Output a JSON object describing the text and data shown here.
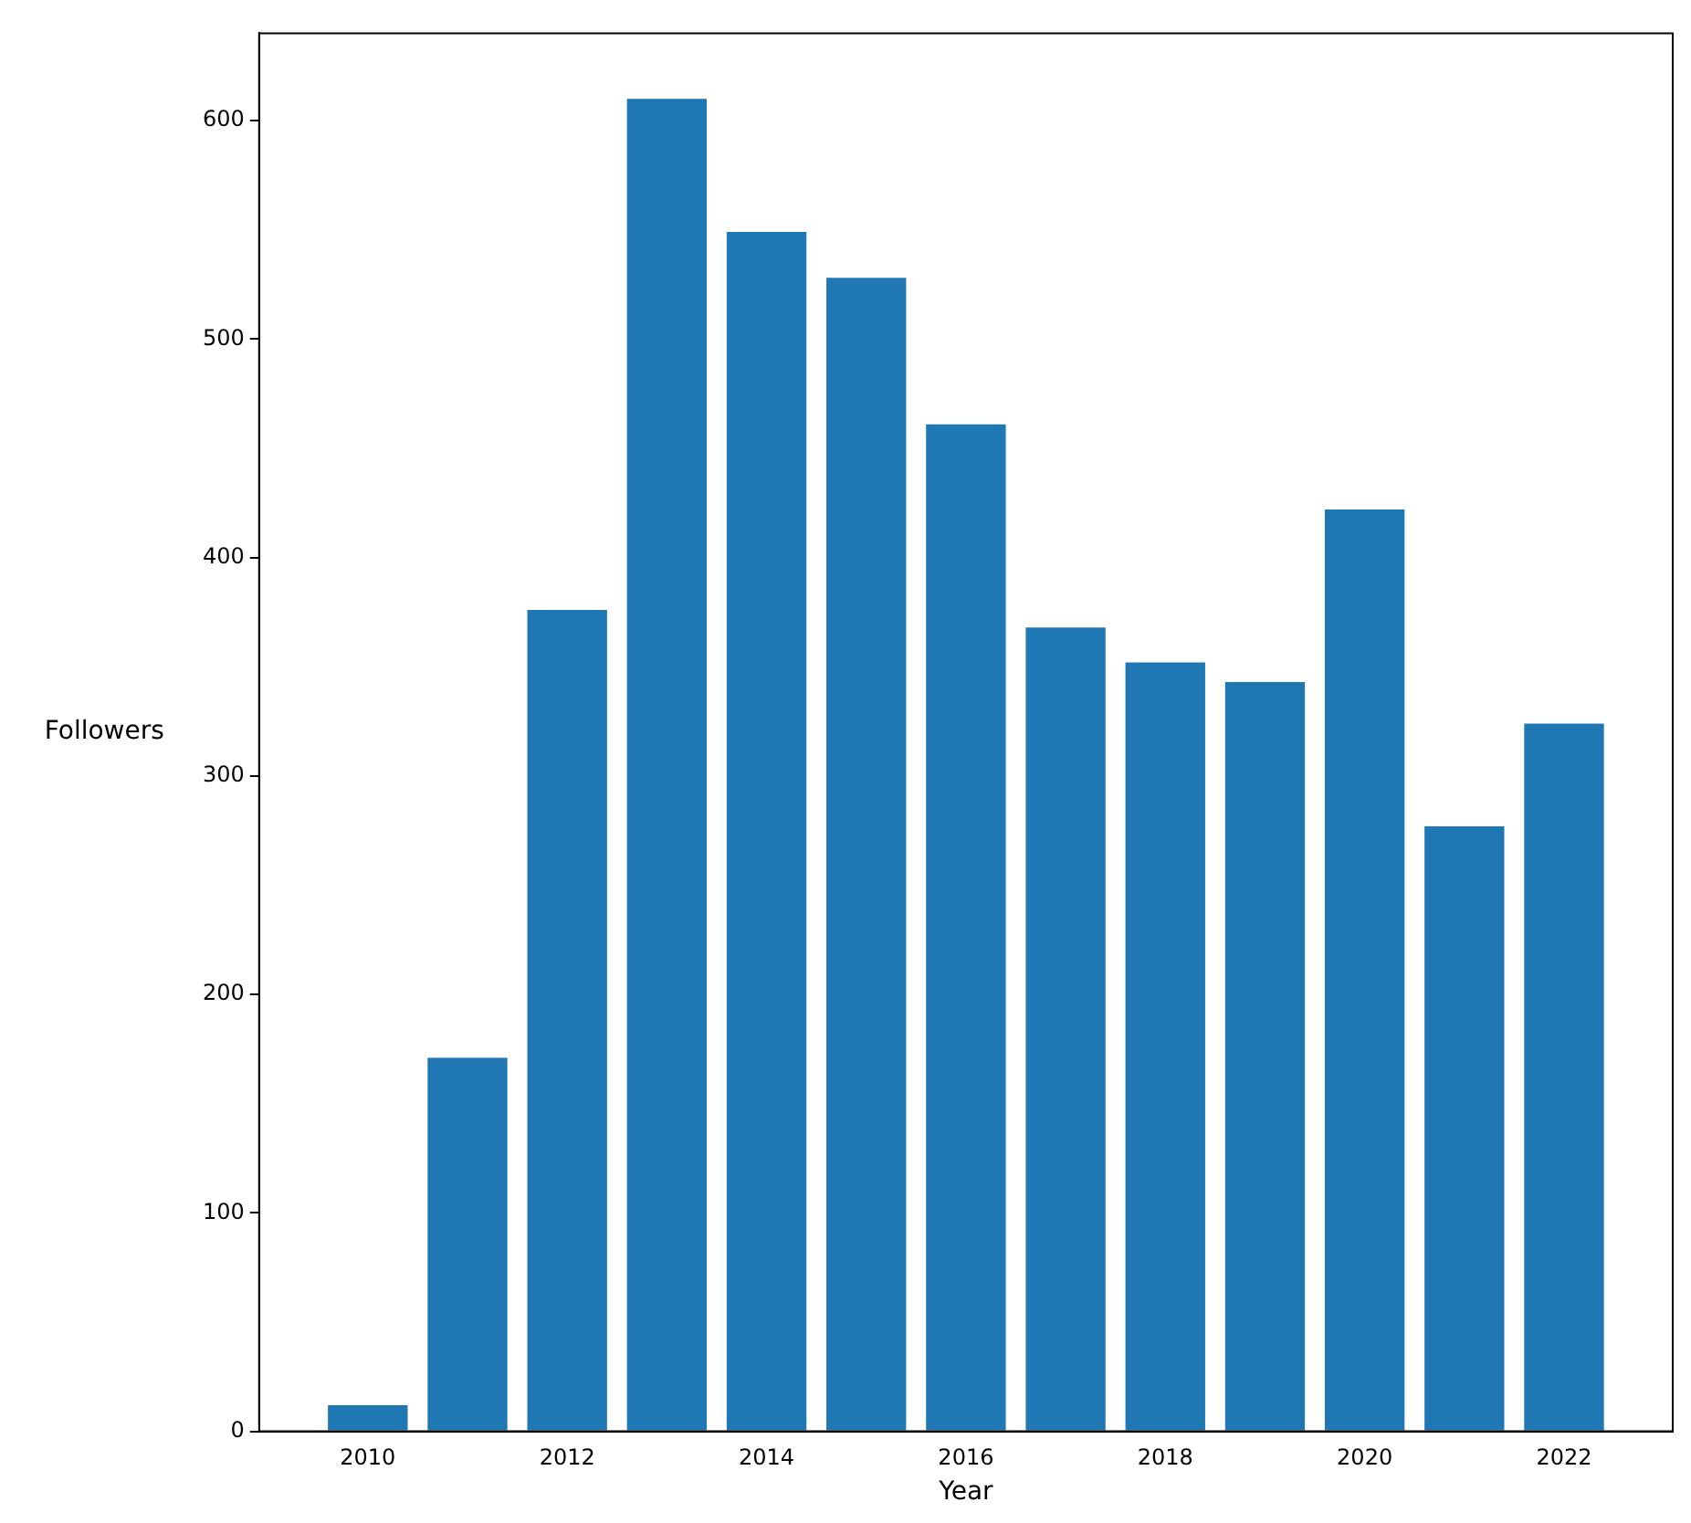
{
  "chart_data": {
    "type": "bar",
    "xlabel": "Year",
    "ylabel": "Followers",
    "x": [
      2010,
      2011,
      2012,
      2013,
      2014,
      2015,
      2016,
      2017,
      2018,
      2019,
      2020,
      2021,
      2022
    ],
    "values": [
      12,
      171,
      376,
      610,
      549,
      528,
      461,
      368,
      352,
      343,
      422,
      277,
      324
    ],
    "color": "#1f77b4",
    "xlim": [
      2008.91,
      2023.09
    ],
    "xticks": [
      2010,
      2012,
      2014,
      2016,
      2018,
      2020,
      2022
    ],
    "ylim": [
      0,
      640
    ],
    "yticks": [
      0,
      100,
      200,
      300,
      400,
      500,
      600
    ],
    "grid": false,
    "legend": false
  }
}
